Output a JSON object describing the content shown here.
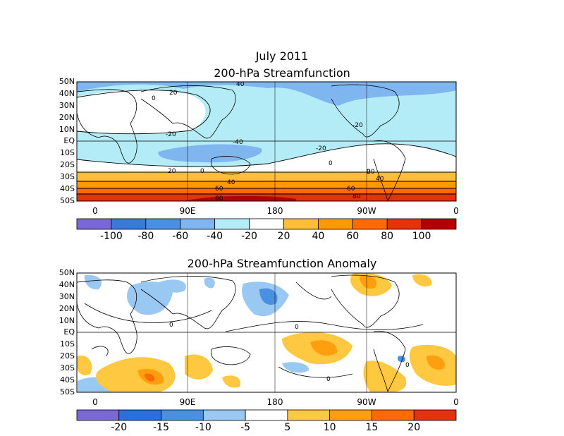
{
  "title_line1": "July 2011",
  "title_line2": "200-hPa Streamfunction",
  "title_bottom": "200-hPa Streamfunction Anomaly",
  "lat_labels": [
    "50N",
    "40N",
    "30N",
    "20N",
    "10N",
    "EQ",
    "10S",
    "20S",
    "30S",
    "40S",
    "50S"
  ],
  "lon_labels": [
    "0",
    "90E",
    "180",
    "90W",
    "0"
  ],
  "top_colorbar": {
    "labels": [
      "-100",
      "-80",
      "-60",
      "-40",
      "-20",
      "20",
      "40",
      "60",
      "80",
      "100"
    ],
    "colors": [
      "#7b68d8",
      "#3c78d8",
      "#4a90e2",
      "#7fb6f0",
      "#b3ecf7",
      "#ffffff",
      "#ffbe3a",
      "#ff9900",
      "#ff6a00",
      "#e6320a",
      "#b40000"
    ]
  },
  "bottom_colorbar": {
    "labels": [
      "-20",
      "-15",
      "-10",
      "-5",
      "5",
      "10",
      "15",
      "20"
    ],
    "colors": [
      "#7b68d8",
      "#2a6fe0",
      "#4a90e2",
      "#99c8f2",
      "#ffffff",
      "#ffc840",
      "#ff9f10",
      "#ff6a00",
      "#e6320a"
    ]
  },
  "contour_labels_top": [
    "40",
    "20",
    "0",
    "-20",
    "-20",
    "-20",
    "-40",
    "0",
    "20",
    "40",
    "60",
    "80",
    "0",
    "-20",
    "0",
    "20",
    "40",
    "60",
    "80"
  ],
  "contour_labels_bottom": [
    "0",
    "0",
    "0",
    "0"
  ],
  "chart_data": [
    {
      "type": "heatmap",
      "title": "July 2011 200-hPa Streamfunction",
      "y_ticks": [
        "50N",
        "40N",
        "30N",
        "20N",
        "10N",
        "EQ",
        "10S",
        "20S",
        "30S",
        "40S",
        "50S"
      ],
      "x_ticks": [
        "0",
        "90E",
        "180",
        "90W",
        "0"
      ],
      "color_levels": [
        -100,
        -80,
        -60,
        -40,
        -20,
        20,
        40,
        60,
        80,
        100
      ],
      "contour_labels": [
        -20,
        0,
        20,
        40,
        60,
        80
      ]
    },
    {
      "type": "heatmap",
      "title": "200-hPa Streamfunction Anomaly",
      "y_ticks": [
        "50N",
        "40N",
        "30N",
        "20N",
        "10N",
        "EQ",
        "10S",
        "20S",
        "30S",
        "40S",
        "50S"
      ],
      "x_ticks": [
        "0",
        "90E",
        "180",
        "90W",
        "0"
      ],
      "color_levels": [
        -20,
        -15,
        -10,
        -5,
        5,
        10,
        15,
        20
      ],
      "contour_labels": [
        0
      ]
    }
  ]
}
